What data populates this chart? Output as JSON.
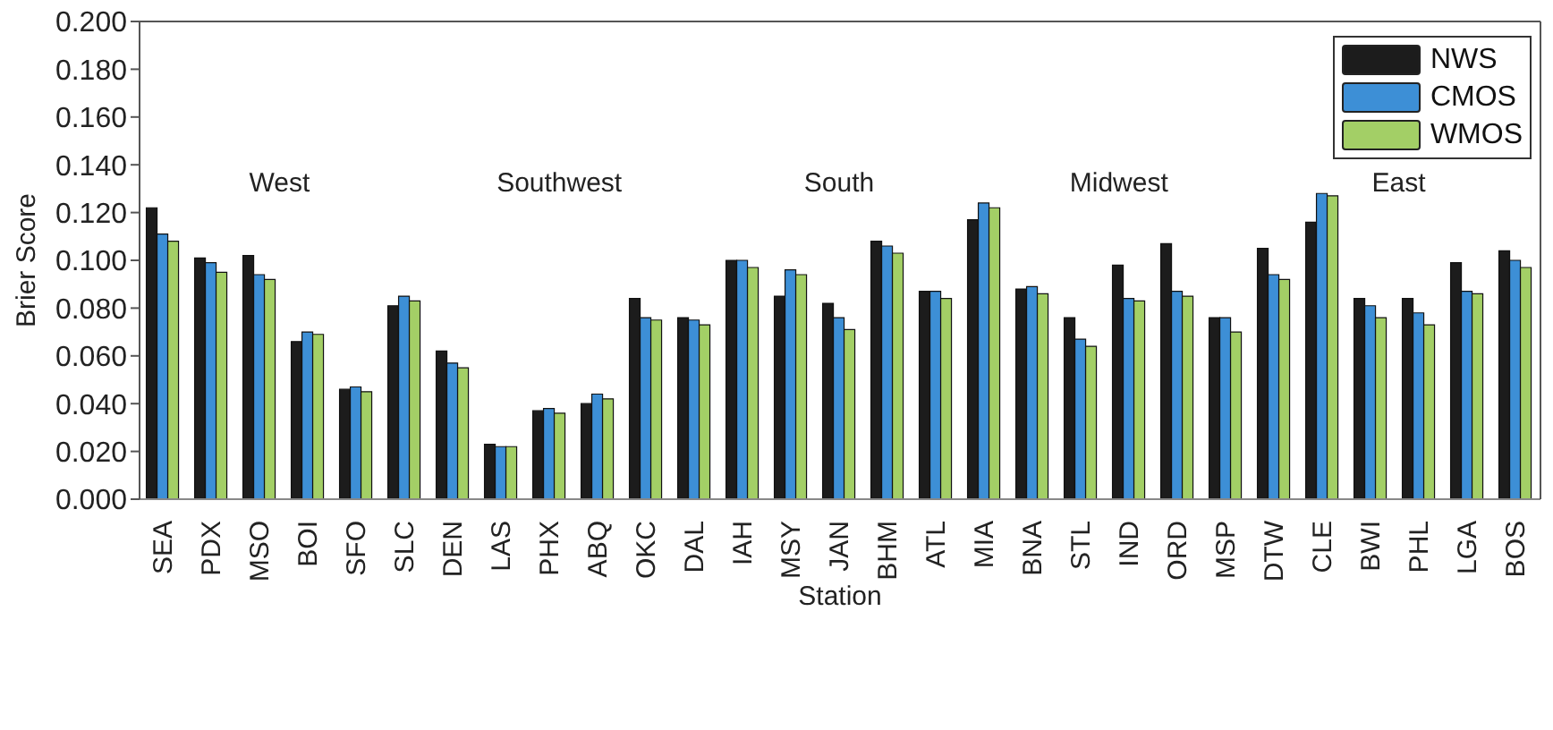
{
  "chart_data": {
    "type": "bar",
    "ylabel": "Brier Score",
    "xlabel": "Station",
    "categories": [
      "SEA",
      "PDX",
      "MSO",
      "BOI",
      "SFO",
      "SLC",
      "DEN",
      "LAS",
      "PHX",
      "ABQ",
      "OKC",
      "DAL",
      "IAH",
      "MSY",
      "JAN",
      "BHM",
      "ATL",
      "MIA",
      "BNA",
      "STL",
      "IND",
      "ORD",
      "MSP",
      "DTW",
      "CLE",
      "BWI",
      "PHL",
      "LGA",
      "BOS"
    ],
    "series": [
      {
        "name": "NWS",
        "color": "#1c1c1c",
        "values": [
          0.122,
          0.101,
          0.102,
          0.066,
          0.046,
          0.081,
          0.062,
          0.023,
          0.037,
          0.04,
          0.084,
          0.076,
          0.1,
          0.085,
          0.082,
          0.108,
          0.087,
          0.117,
          0.088,
          0.076,
          0.098,
          0.107,
          0.076,
          0.105,
          0.116,
          0.084,
          0.084,
          0.099,
          0.104
        ]
      },
      {
        "name": "CMOS",
        "color": "#3d8fd6",
        "values": [
          0.111,
          0.099,
          0.094,
          0.07,
          0.047,
          0.085,
          0.057,
          0.022,
          0.038,
          0.044,
          0.076,
          0.075,
          0.1,
          0.096,
          0.076,
          0.106,
          0.087,
          0.124,
          0.089,
          0.067,
          0.084,
          0.087,
          0.076,
          0.094,
          0.128,
          0.081,
          0.078,
          0.087,
          0.1
        ]
      },
      {
        "name": "WMOS",
        "color": "#a3cf66",
        "values": [
          0.108,
          0.095,
          0.092,
          0.069,
          0.045,
          0.083,
          0.055,
          0.022,
          0.036,
          0.042,
          0.075,
          0.073,
          0.097,
          0.094,
          0.071,
          0.103,
          0.084,
          0.122,
          0.086,
          0.064,
          0.083,
          0.085,
          0.07,
          0.092,
          0.127,
          0.076,
          0.073,
          0.086,
          0.097
        ]
      }
    ],
    "ylim": [
      0,
      0.2
    ],
    "yticks": [
      {
        "value": 0,
        "label": "0.000"
      },
      {
        "value": 0.02,
        "label": "0.020"
      },
      {
        "value": 0.04,
        "label": "0.040"
      },
      {
        "value": 0.06,
        "label": "0.060"
      },
      {
        "value": 0.08,
        "label": "0.080"
      },
      {
        "value": 0.1,
        "label": "0.100"
      },
      {
        "value": 0.12,
        "label": "0.120"
      },
      {
        "value": 0.14,
        "label": "0.140"
      },
      {
        "value": 0.16,
        "label": "0.160"
      },
      {
        "value": 0.18,
        "label": "0.180"
      },
      {
        "value": 0.2,
        "label": "0.200"
      }
    ],
    "annotations": [
      "West",
      "Southwest",
      "South",
      "Midwest",
      "East"
    ],
    "legend": "top right",
    "grid": false
  }
}
